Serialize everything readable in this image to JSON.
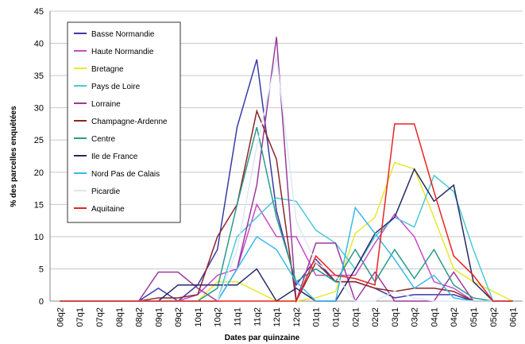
{
  "chart_data": {
    "type": "line",
    "xlabel": "Dates par quinzaine",
    "ylabel": "% des parcelles enquêtées",
    "categories": [
      "06q2",
      "07q1",
      "07q2",
      "08q1",
      "08q2",
      "09q1",
      "09q2",
      "10q1",
      "10q2",
      "11q1",
      "11q2",
      "12q1",
      "12q2",
      "01q1",
      "01q2",
      "02q1",
      "02q2",
      "03q1",
      "03q2",
      "04q1",
      "04q2",
      "05q1",
      "05q2",
      "06q1"
    ],
    "ylim": [
      0,
      45
    ],
    "yticks": [
      0,
      5,
      10,
      15,
      20,
      25,
      30,
      35,
      40,
      45
    ],
    "grid": true,
    "legend": "upper left",
    "series": [
      {
        "name": "Basse Normandie",
        "color": "#3a3aa8",
        "values": [
          0,
          0,
          0,
          0,
          0,
          2,
          0,
          2.5,
          8,
          27,
          37.5,
          14,
          2.5,
          6.5,
          3,
          3,
          2,
          0.5,
          1,
          1,
          1,
          0,
          0,
          0
        ]
      },
      {
        "name": "Haute Normandie",
        "color": "#c84ac8",
        "values": [
          0,
          0,
          0,
          0,
          0,
          0,
          0,
          1,
          4,
          5,
          15,
          10,
          10,
          4,
          4,
          4,
          9,
          13.5,
          10,
          3,
          2,
          0,
          0,
          0
        ]
      },
      {
        "name": "Bretagne",
        "color": "#e8e830",
        "values": [
          0,
          0,
          0,
          0,
          0,
          0,
          0,
          0,
          3,
          3,
          1.5,
          0,
          0,
          0.5,
          1.5,
          10.5,
          13,
          21.5,
          20.5,
          13,
          5,
          3,
          1.5,
          0
        ]
      },
      {
        "name": "Pays de Loire",
        "color": "#4cc8d8",
        "values": [
          0,
          0,
          0,
          0,
          0,
          0,
          0,
          0,
          0,
          10,
          13,
          16,
          15.5,
          11,
          9,
          5,
          10,
          13,
          11.5,
          19.5,
          17,
          8,
          0,
          0
        ]
      },
      {
        "name": "Lorraine",
        "color": "#9a3a9a",
        "values": [
          0,
          0,
          0,
          0,
          0,
          4.5,
          4.5,
          2,
          0,
          5,
          18,
          41,
          0,
          9,
          9,
          0,
          4.5,
          0,
          0,
          0,
          4.5,
          0,
          0,
          0
        ]
      },
      {
        "name": "Champagne-Ardenne",
        "color": "#8a2626",
        "values": [
          0,
          0,
          0,
          0,
          0,
          0.5,
          0.5,
          1,
          10,
          15,
          29.5,
          22,
          0,
          6,
          3,
          3,
          2,
          1.5,
          2,
          2,
          1.5,
          0,
          0,
          0
        ]
      },
      {
        "name": "Centre",
        "color": "#2a9a8a",
        "values": [
          0,
          0,
          0,
          0,
          0,
          0,
          0,
          0,
          2,
          15,
          27,
          13,
          3,
          5,
          3,
          8,
          3,
          8,
          3.5,
          8,
          2.5,
          0.5,
          0,
          0
        ]
      },
      {
        "name": "Ile de France",
        "color": "#262a66",
        "values": [
          0,
          0,
          0,
          0,
          0,
          0,
          2.5,
          2.5,
          2.5,
          2.5,
          5,
          0,
          2,
          0,
          0,
          5,
          10.5,
          13,
          20.5,
          15.5,
          18,
          3,
          0,
          0
        ]
      },
      {
        "name": "Nord Pas de Calais",
        "color": "#38b8ea",
        "values": [
          0,
          0,
          0,
          0,
          0,
          0,
          0,
          0,
          0,
          5,
          10,
          8,
          3,
          0,
          0,
          14.5,
          10.5,
          6.5,
          2,
          4,
          0.5,
          0,
          0,
          0
        ]
      },
      {
        "name": "Picardie",
        "color": "#dde8f4",
        "values": [
          0,
          0,
          0,
          0,
          0,
          0,
          0,
          0,
          0,
          8,
          24,
          38,
          12.5,
          6,
          4,
          0,
          0,
          1.5,
          0.5,
          0,
          0,
          0,
          0,
          0
        ]
      },
      {
        "name": "Aquitaine",
        "color": "#e82424",
        "values": [
          0,
          0,
          0,
          0,
          0,
          0,
          0,
          0,
          0,
          0,
          0,
          0,
          0,
          7,
          4,
          3.5,
          2.5,
          27.5,
          27.5,
          17,
          7,
          4,
          0,
          0
        ]
      }
    ]
  }
}
